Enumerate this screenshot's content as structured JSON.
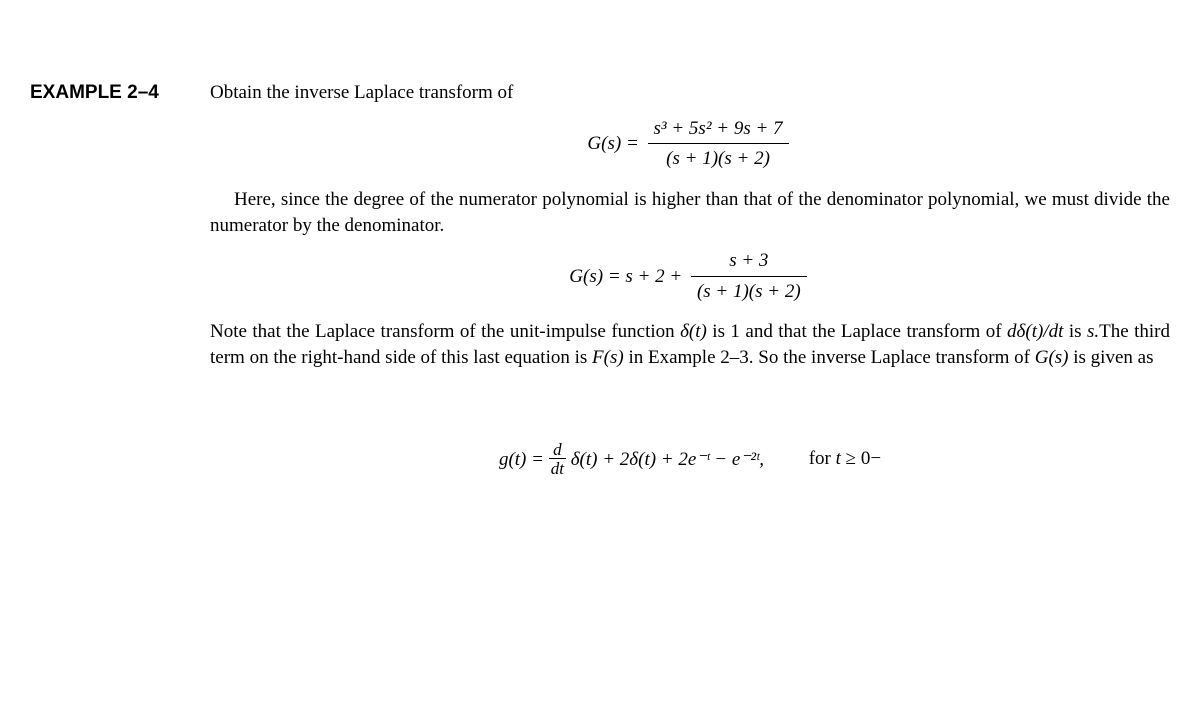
{
  "example_label": "EXAMPLE 2–4",
  "intro_text": "Obtain the inverse Laplace transform of",
  "equation1": {
    "lhs": "G(s) =",
    "numerator": "s³ + 5s² + 9s + 7",
    "denominator": "(s + 1)(s + 2)"
  },
  "paragraph1": "Here, since the degree of the numerator polynomial is higher than that of the denominator polynomial, we must divide the numerator by the denominator.",
  "equation2": {
    "lhs": "G(s) = s + 2 +",
    "numerator": "s + 3",
    "denominator": "(s + 1)(s + 2)"
  },
  "paragraph2_parts": {
    "p1": "Note that the Laplace transform of the unit-impulse function ",
    "delta1": "δ(t)",
    "p2": " is 1 and that the Laplace transform of ",
    "deriv": "dδ(t)/dt",
    "p3": " is ",
    "s_var": "s.",
    "p4": "The third term on the right-hand side of this last equation is ",
    "Fs": "F(s)",
    "p5": " in Example 2–3. So the inverse Laplace transform of ",
    "Gs": "G(s)",
    "p6": " is given as"
  },
  "equation3": {
    "lhs": "g(t) =",
    "frac_num": "d",
    "frac_den": "dt",
    "rhs": "δ(t) + 2δ(t) + 2e⁻ᵗ − e⁻²ᵗ,",
    "condition_prefix": "for ",
    "condition_var": "t",
    "condition_suffix": " ≥ 0−"
  },
  "style": {
    "body_font_size": 19,
    "label_font_size": 19,
    "text_color": "#000000",
    "background": "#ffffff"
  }
}
